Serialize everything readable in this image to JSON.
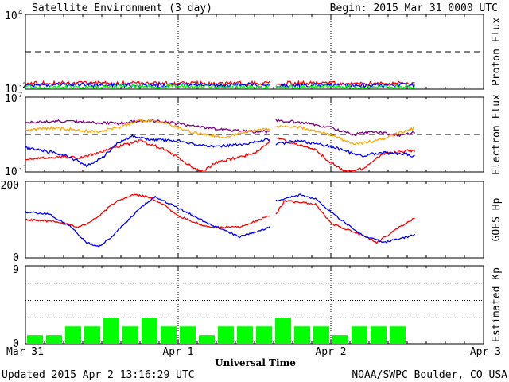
{
  "header": {
    "title": "Satellite Environment (3 day)",
    "begin": "Begin:  2015 Mar 31 0000 UTC"
  },
  "footer": {
    "updated": "Updated 2015 Apr  2 13:16:29 UTC",
    "credit": "NOAA/SWPC Boulder, CO USA"
  },
  "x_axis": {
    "label": "Universal Time",
    "ticks": [
      "Mar 31",
      "Apr 1",
      "Apr 2",
      "Apr 3"
    ],
    "range_days": [
      0,
      3
    ]
  },
  "colors": {
    "red": "#ff0000",
    "blue": "#0000ff",
    "green": "#00ff00",
    "purple": "#800080",
    "orange": "#ffa500",
    "kp_bar": "#00ff00"
  },
  "chart_data": [
    {
      "type": "line",
      "ylabel": "Proton Flux",
      "ylog": true,
      "ylim_exp": [
        -2,
        4
      ],
      "ytick_base": "10",
      "yticks_exp": [
        "4",
        "-2"
      ],
      "threshold": 10,
      "gap": [
        1.6,
        1.64
      ],
      "series": [
        {
          "color": "red",
          "x": [
            0,
            0.5,
            1,
            1.5,
            1.6,
            1.64,
            2,
            2.5,
            2.55
          ],
          "y": [
            0.03,
            0.03,
            0.028,
            0.03,
            0.03,
            0.03,
            0.029,
            0.028,
            0.028
          ]
        },
        {
          "color": "blue",
          "x": [
            0,
            0.5,
            1,
            1.5,
            1.6,
            1.64,
            2,
            2.5,
            2.55
          ],
          "y": [
            0.02,
            0.021,
            0.02,
            0.021,
            0.02,
            0.02,
            0.02,
            0.021,
            0.02
          ]
        },
        {
          "color": "green",
          "x": [
            0,
            0.5,
            1,
            1.5,
            1.6,
            1.64,
            2,
            2.5,
            2.55
          ],
          "y": [
            0.015,
            0.015,
            0.016,
            0.015,
            0.015,
            0.015,
            0.015,
            0.015,
            0.015
          ]
        }
      ]
    },
    {
      "type": "line",
      "ylabel": "Electron Flux",
      "ylog": true,
      "ylim_exp": [
        -1,
        7
      ],
      "ytick_base": "10",
      "yticks_exp": [
        "7",
        "-1"
      ],
      "threshold": 1000,
      "gap": [
        1.6,
        1.64
      ],
      "series": [
        {
          "color": "purple",
          "x": [
            0,
            0.2,
            0.45,
            0.6,
            0.75,
            0.9,
            1.1,
            1.3,
            1.5,
            1.6,
            1.64,
            1.8,
            2.0,
            2.15,
            2.3,
            2.45,
            2.55
          ],
          "y": [
            20000,
            30000,
            20000,
            15000,
            30000,
            25000,
            8000,
            3000,
            2000,
            2000,
            30000,
            20000,
            5000,
            1000,
            2000,
            800,
            1500
          ]
        },
        {
          "color": "orange",
          "x": [
            0,
            0.2,
            0.45,
            0.6,
            0.75,
            0.9,
            1.1,
            1.3,
            1.5,
            1.6,
            1.64,
            1.8,
            2.0,
            2.15,
            2.3,
            2.45,
            2.55
          ],
          "y": [
            3000,
            5000,
            2000,
            5000,
            30000,
            20000,
            1500,
            500,
            3000,
            4000,
            8000,
            6000,
            800,
            100,
            200,
            1500,
            5000
          ]
        },
        {
          "color": "red",
          "x": [
            0,
            0.2,
            0.35,
            0.5,
            0.6,
            0.75,
            0.9,
            1.05,
            1.15,
            1.25,
            1.5,
            1.6,
            1.64,
            1.9,
            2.0,
            2.1,
            2.2,
            2.35,
            2.55
          ],
          "y": [
            2,
            4,
            3,
            15,
            50,
            200,
            30,
            1,
            0.1,
            1,
            10,
            200,
            500,
            20,
            1,
            0.1,
            0.2,
            10,
            20
          ]
        },
        {
          "color": "blue",
          "x": [
            0,
            0.2,
            0.3,
            0.4,
            0.5,
            0.6,
            0.7,
            0.8,
            1.0,
            1.2,
            1.4,
            1.6,
            1.64,
            1.8,
            2.0,
            2.2,
            2.3,
            2.45,
            2.55
          ],
          "y": [
            40,
            10,
            3,
            0.5,
            3,
            100,
            800,
            300,
            200,
            50,
            80,
            300,
            100,
            200,
            50,
            5,
            10,
            10,
            5
          ]
        }
      ]
    },
    {
      "type": "line",
      "ylabel": "GOES Hp",
      "ylog": false,
      "ylim": [
        0,
        200
      ],
      "yticks": [
        "200",
        "0"
      ],
      "gap": [
        1.6,
        1.64
      ],
      "series": [
        {
          "color": "red",
          "x": [
            0,
            0.2,
            0.35,
            0.45,
            0.6,
            0.7,
            0.8,
            0.9,
            1.0,
            1.2,
            1.4,
            1.6,
            1.64,
            1.7,
            1.9,
            2.0,
            2.2,
            2.3,
            2.45,
            2.55
          ],
          "y": [
            100,
            95,
            80,
            100,
            150,
            165,
            160,
            140,
            110,
            80,
            80,
            110,
            115,
            150,
            140,
            90,
            60,
            40,
            80,
            105
          ]
        },
        {
          "color": "blue",
          "x": [
            0,
            0.15,
            0.3,
            0.4,
            0.48,
            0.55,
            0.7,
            0.78,
            0.85,
            0.9,
            1.0,
            1.2,
            1.4,
            1.6,
            1.64,
            1.8,
            1.9,
            2.0,
            2.2,
            2.35,
            2.45,
            2.55
          ],
          "y": [
            120,
            115,
            80,
            40,
            30,
            50,
            110,
            140,
            160,
            150,
            130,
            90,
            55,
            80,
            150,
            165,
            155,
            120,
            60,
            40,
            50,
            60
          ]
        }
      ]
    },
    {
      "type": "bar",
      "ylabel": "Estimated Kp",
      "ylim": [
        0,
        9
      ],
      "yticks": [
        "9",
        "0"
      ],
      "grid": [
        3,
        5,
        7
      ],
      "bar_width_days": 0.125,
      "start_days": 0,
      "values": [
        1,
        1,
        2,
        2,
        3,
        2,
        3,
        2,
        2,
        1,
        2,
        2,
        2,
        3,
        2,
        2,
        1,
        2,
        2,
        2
      ]
    }
  ]
}
